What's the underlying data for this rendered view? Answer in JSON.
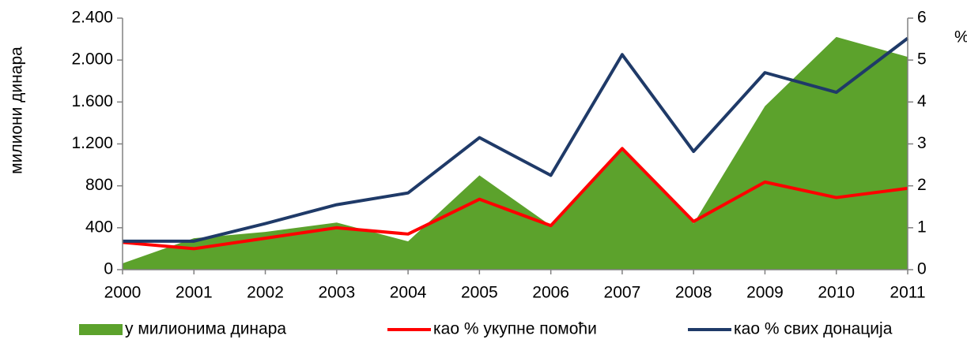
{
  "chart_data": {
    "type": "combo",
    "ylabel": "милиони динара",
    "y2label": "%",
    "categories": [
      "2000",
      "2001",
      "2002",
      "2003",
      "2004",
      "2005",
      "2006",
      "2007",
      "2008",
      "2009",
      "2010",
      "2011"
    ],
    "series": [
      {
        "name": "у милионима  динара",
        "type": "area",
        "color": "#5ca22c",
        "values": [
          60,
          300,
          360,
          450,
          270,
          900,
          420,
          1150,
          440,
          1560,
          2220,
          2030
        ]
      },
      {
        "name": "као % укупне помоћи",
        "type": "line",
        "axis": "y2",
        "color": "#ff0000",
        "values": [
          0.65,
          0.5,
          0.75,
          1.0,
          0.85,
          1.68,
          1.05,
          2.89,
          1.15,
          2.09,
          1.72,
          1.94
        ]
      },
      {
        "name": "као % свих донација",
        "type": "line",
        "axis": "y2",
        "color": "#1f3a68",
        "values": [
          0.68,
          0.68,
          1.1,
          1.55,
          1.83,
          3.15,
          2.25,
          5.13,
          2.82,
          4.7,
          4.23,
          5.52
        ]
      }
    ],
    "ylim": [
      0,
      2400
    ],
    "yticks": [
      0,
      400,
      800,
      {
        "value": 1200,
        "label": "1.200"
      },
      {
        "value": 1600,
        "label": "1.600"
      },
      {
        "value": 2000,
        "label": "2.000"
      },
      {
        "value": 2400,
        "label": "2.400"
      }
    ],
    "y2lim": [
      0,
      6
    ],
    "y2ticks": [
      0,
      1,
      2,
      3,
      4,
      5,
      6
    ],
    "legend": "bottom"
  }
}
